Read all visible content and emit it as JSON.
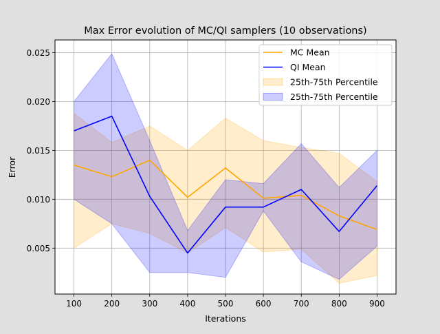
{
  "chart_data": {
    "type": "line",
    "title": "Max Error evolution of MC/QI samplers (10 observations)",
    "xlabel": "Iterations",
    "ylabel": "Error",
    "x": [
      100,
      200,
      300,
      400,
      500,
      600,
      700,
      800,
      900
    ],
    "xlim": [
      50,
      950
    ],
    "ylim": [
      0.0003,
      0.0263
    ],
    "xticks": [
      "100",
      "200",
      "300",
      "400",
      "500",
      "600",
      "700",
      "800",
      "900"
    ],
    "yticks": [
      0.005,
      0.01,
      0.015,
      0.02,
      0.025
    ],
    "ytick_labels": [
      "0.005",
      "0.010",
      "0.015",
      "0.020",
      "0.025"
    ],
    "grid": true,
    "legend_position": "top-right",
    "bands": [
      {
        "name": "25th-75th Percentile",
        "color": "#ffa500",
        "opacity": 0.2,
        "lower": [
          0.005,
          0.0075,
          0.0065,
          0.0045,
          0.0071,
          0.0046,
          0.0049,
          0.0014,
          0.0022
        ],
        "upper": [
          0.0188,
          0.0158,
          0.0175,
          0.015,
          0.0183,
          0.016,
          0.0153,
          0.0147,
          0.0118
        ]
      },
      {
        "name": "25th-75th Percentile",
        "color": "#0000ff",
        "opacity": 0.2,
        "lower": [
          0.01,
          0.0075,
          0.0025,
          0.0025,
          0.002,
          0.0088,
          0.0036,
          0.0018,
          0.0052
        ],
        "upper": [
          0.02,
          0.0249,
          0.016,
          0.0068,
          0.012,
          0.0116,
          0.0157,
          0.0112,
          0.015
        ]
      }
    ],
    "series": [
      {
        "name": "MC Mean",
        "color": "#ffa500",
        "values": [
          0.0135,
          0.0123,
          0.014,
          0.0102,
          0.0132,
          0.0101,
          0.0104,
          0.0083,
          0.0069
        ]
      },
      {
        "name": "QI Mean",
        "color": "#0000ff",
        "values": [
          0.017,
          0.0185,
          0.0103,
          0.0045,
          0.0092,
          0.0092,
          0.011,
          0.0067,
          0.0114
        ]
      }
    ]
  }
}
